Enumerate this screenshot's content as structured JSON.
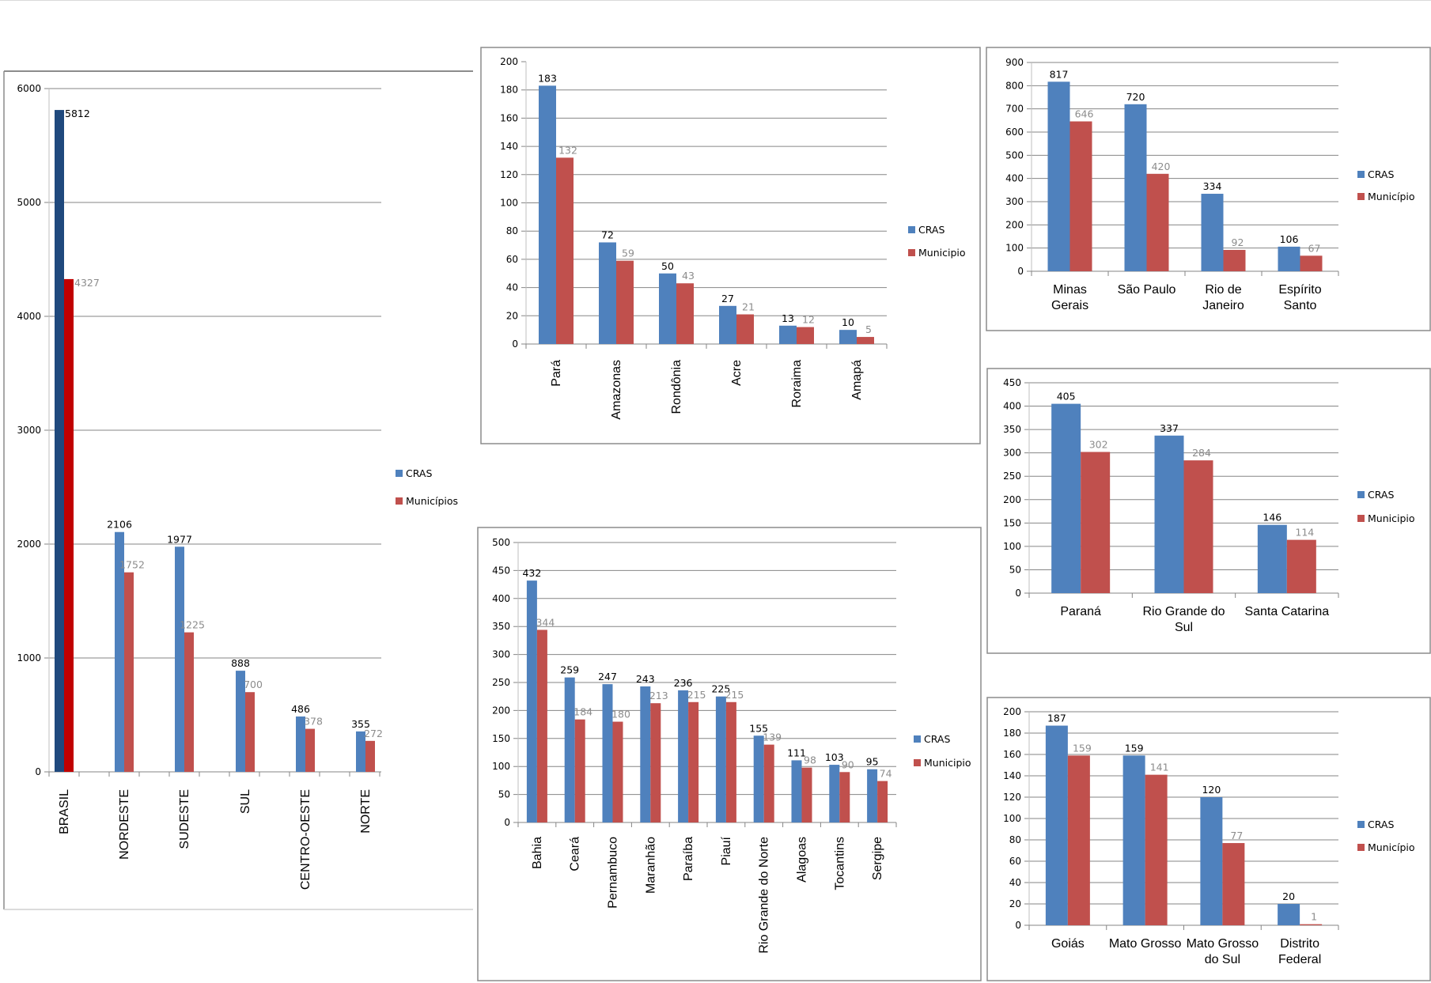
{
  "colors": {
    "cras": "#4f81bd",
    "municipio": "#c0504d",
    "cras_highlight": "#1f497d",
    "municipio_highlight": "#c00000",
    "grid": "#868686",
    "frame": "#868686"
  },
  "chart_data": [
    {
      "id": "brasil-regioes",
      "type": "bar",
      "title": "",
      "xlabel": "",
      "ylabel": "",
      "ylim": [
        0,
        6000
      ],
      "yticks": [
        0,
        1000,
        2000,
        3000,
        4000,
        5000,
        6000
      ],
      "grid": true,
      "legend_position": "right",
      "category_label_orientation": "vertical",
      "categories": [
        "BRASIL",
        "NORDESTE",
        "SUDESTE",
        "SUL",
        "CENTRO-OESTE",
        "NORTE"
      ],
      "series": [
        {
          "name": "CRAS",
          "values": [
            5812,
            2106,
            1977,
            888,
            486,
            355
          ]
        },
        {
          "name": "Municípios",
          "values": [
            4327,
            1752,
            1225,
            700,
            378,
            272
          ]
        }
      ],
      "highlight_first_category": true
    },
    {
      "id": "norte",
      "type": "bar",
      "title": "",
      "xlabel": "",
      "ylabel": "",
      "ylim": [
        0,
        200
      ],
      "yticks": [
        0,
        20,
        40,
        60,
        80,
        100,
        120,
        140,
        160,
        180,
        200
      ],
      "grid": true,
      "legend_position": "right",
      "category_label_orientation": "vertical",
      "categories": [
        "Pará",
        "Amazonas",
        "Rondônia",
        "Acre",
        "Roraima",
        "Amapá"
      ],
      "series": [
        {
          "name": "CRAS",
          "values": [
            183,
            72,
            50,
            27,
            13,
            10
          ]
        },
        {
          "name": "Municipio",
          "values": [
            132,
            59,
            43,
            21,
            12,
            5
          ]
        }
      ]
    },
    {
      "id": "sudeste",
      "type": "bar",
      "title": "",
      "xlabel": "",
      "ylabel": "",
      "ylim": [
        0,
        900
      ],
      "yticks": [
        0,
        100,
        200,
        300,
        400,
        500,
        600,
        700,
        800,
        900
      ],
      "grid": true,
      "legend_position": "right",
      "category_label_orientation": "horizontal",
      "categories": [
        "Minas Gerais",
        "São Paulo",
        "Rio de Janeiro",
        "Espírito Santo"
      ],
      "category_lines": [
        [
          "Minas",
          "Gerais"
        ],
        [
          "São Paulo"
        ],
        [
          "Rio de",
          "Janeiro"
        ],
        [
          "Espírito",
          "Santo"
        ]
      ],
      "series": [
        {
          "name": "CRAS",
          "values": [
            817,
            720,
            334,
            106
          ]
        },
        {
          "name": "Município",
          "values": [
            646,
            420,
            92,
            67
          ]
        }
      ]
    },
    {
      "id": "sul",
      "type": "bar",
      "title": "",
      "xlabel": "",
      "ylabel": "",
      "ylim": [
        0,
        450
      ],
      "yticks": [
        0,
        50,
        100,
        150,
        200,
        250,
        300,
        350,
        400,
        450
      ],
      "grid": true,
      "legend_position": "right",
      "category_label_orientation": "horizontal",
      "categories": [
        "Paraná",
        "Rio Grande do Sul",
        "Santa Catarina"
      ],
      "category_lines": [
        [
          "Paraná"
        ],
        [
          "Rio Grande do",
          "Sul"
        ],
        [
          "Santa Catarina"
        ]
      ],
      "series": [
        {
          "name": "CRAS",
          "values": [
            405,
            337,
            146
          ]
        },
        {
          "name": "Municipio",
          "values": [
            302,
            284,
            114
          ]
        }
      ]
    },
    {
      "id": "nordeste",
      "type": "bar",
      "title": "",
      "xlabel": "",
      "ylabel": "",
      "ylim": [
        0,
        500
      ],
      "yticks": [
        0,
        50,
        100,
        150,
        200,
        250,
        300,
        350,
        400,
        450,
        500
      ],
      "grid": true,
      "legend_position": "right",
      "category_label_orientation": "vertical",
      "categories": [
        "Bahia",
        "Ceará",
        "Pernambuco",
        "Maranhão",
        "Paraíba",
        "Piauí",
        "Rio Grande do Norte",
        "Alagoas",
        "Tocantins",
        "Sergipe"
      ],
      "series": [
        {
          "name": "CRAS",
          "values": [
            432,
            259,
            247,
            243,
            236,
            225,
            155,
            111,
            103,
            95
          ]
        },
        {
          "name": "Municipio",
          "values": [
            344,
            184,
            180,
            213,
            215,
            215,
            139,
            98,
            90,
            74
          ]
        }
      ]
    },
    {
      "id": "centro-oeste",
      "type": "bar",
      "title": "",
      "xlabel": "",
      "ylabel": "",
      "ylim": [
        0,
        200
      ],
      "yticks": [
        0,
        20,
        40,
        60,
        80,
        100,
        120,
        140,
        160,
        180,
        200
      ],
      "grid": true,
      "legend_position": "right",
      "category_label_orientation": "horizontal",
      "categories": [
        "Goiás",
        "Mato Grosso",
        "Mato Grosso do Sul",
        "Distrito Federal"
      ],
      "category_lines": [
        [
          "Goiás"
        ],
        [
          "Mato Grosso"
        ],
        [
          "Mato Grosso",
          "do Sul"
        ],
        [
          "Distrito",
          "Federal"
        ]
      ],
      "series": [
        {
          "name": "CRAS",
          "values": [
            187,
            159,
            120,
            20
          ]
        },
        {
          "name": "Município",
          "values": [
            159,
            141,
            77,
            1
          ]
        }
      ]
    }
  ]
}
